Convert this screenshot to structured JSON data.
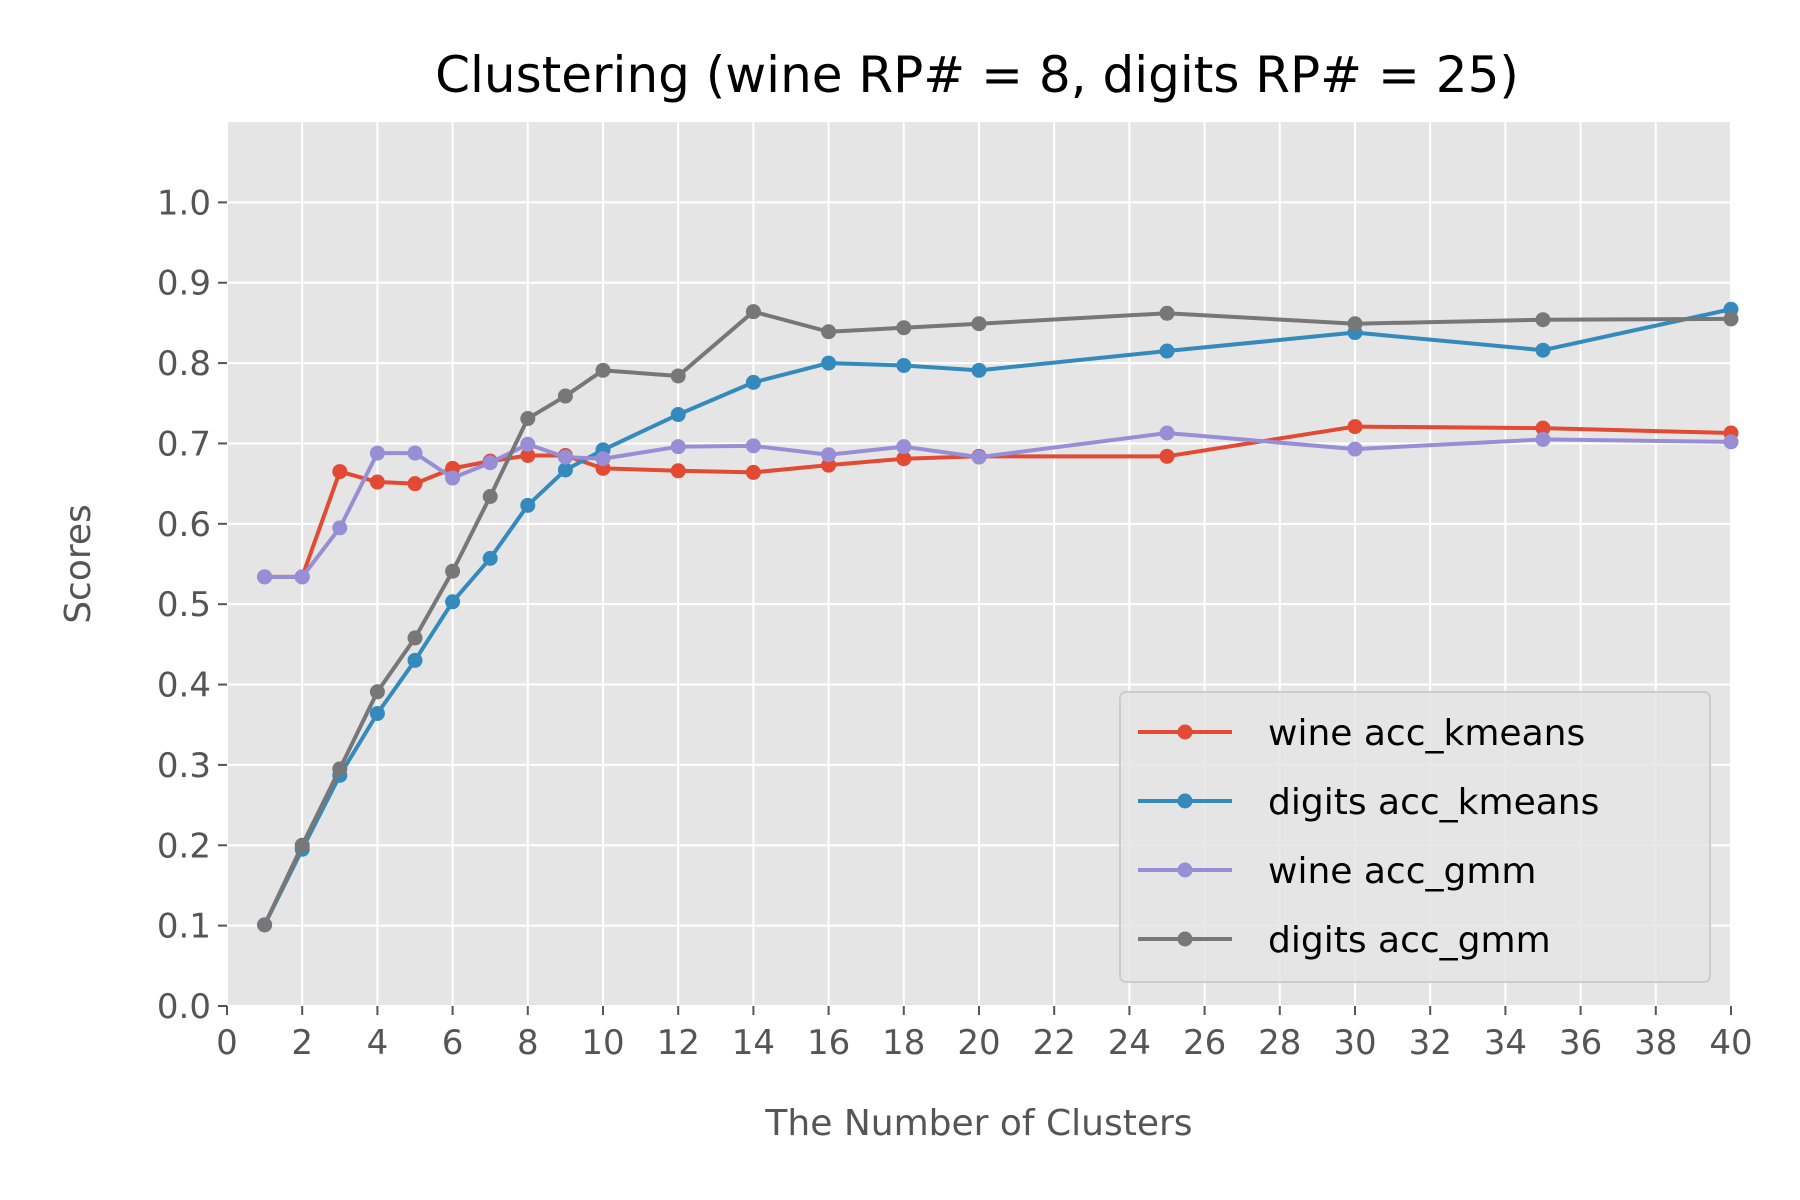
{
  "chart_data": {
    "type": "line",
    "title": "Clustering (wine RP# = 8, digits RP# = 25)",
    "xlabel": "The Number of Clusters",
    "ylabel": "Scores",
    "xlim": [
      0,
      40
    ],
    "ylim": [
      0,
      1.1
    ],
    "xticks": [
      "0",
      "2",
      "4",
      "6",
      "8",
      "10",
      "12",
      "14",
      "16",
      "18",
      "20",
      "22",
      "24",
      "26",
      "28",
      "30",
      "32",
      "34",
      "36",
      "38",
      "40"
    ],
    "yticks": [
      "0.0",
      "0.1",
      "0.2",
      "0.3",
      "0.4",
      "0.5",
      "0.6",
      "0.7",
      "0.8",
      "0.9",
      "1.0"
    ],
    "grid": true,
    "legend_position": "lower-right",
    "x": [
      1,
      2,
      3,
      4,
      5,
      6,
      7,
      8,
      9,
      10,
      12,
      14,
      16,
      18,
      20,
      25,
      30,
      35,
      40
    ],
    "series": [
      {
        "name": "wine acc_kmeans",
        "color": "#E24A33",
        "values": [
          0.534,
          0.534,
          0.665,
          0.652,
          0.65,
          0.669,
          0.678,
          0.685,
          0.685,
          0.669,
          0.666,
          0.664,
          0.673,
          0.681,
          0.684,
          0.684,
          0.721,
          0.719,
          0.713
        ]
      },
      {
        "name": "digits acc_kmeans",
        "color": "#348ABD",
        "values": [
          0.101,
          0.195,
          0.287,
          0.364,
          0.43,
          0.503,
          0.557,
          0.623,
          0.667,
          0.692,
          0.736,
          0.776,
          0.8,
          0.797,
          0.791,
          0.815,
          0.838,
          0.816,
          0.867
        ]
      },
      {
        "name": "wine acc_gmm",
        "color": "#988ED5",
        "values": [
          0.534,
          0.534,
          0.595,
          0.688,
          0.688,
          0.657,
          0.676,
          0.699,
          0.683,
          0.681,
          0.696,
          0.697,
          0.686,
          0.696,
          0.683,
          0.713,
          0.693,
          0.705,
          0.702
        ]
      },
      {
        "name": "digits acc_gmm",
        "color": "#777777",
        "values": [
          0.101,
          0.2,
          0.295,
          0.391,
          0.458,
          0.541,
          0.634,
          0.731,
          0.759,
          0.791,
          0.784,
          0.864,
          0.839,
          0.844,
          0.849,
          0.862,
          0.849,
          0.854,
          0.855
        ]
      }
    ]
  }
}
